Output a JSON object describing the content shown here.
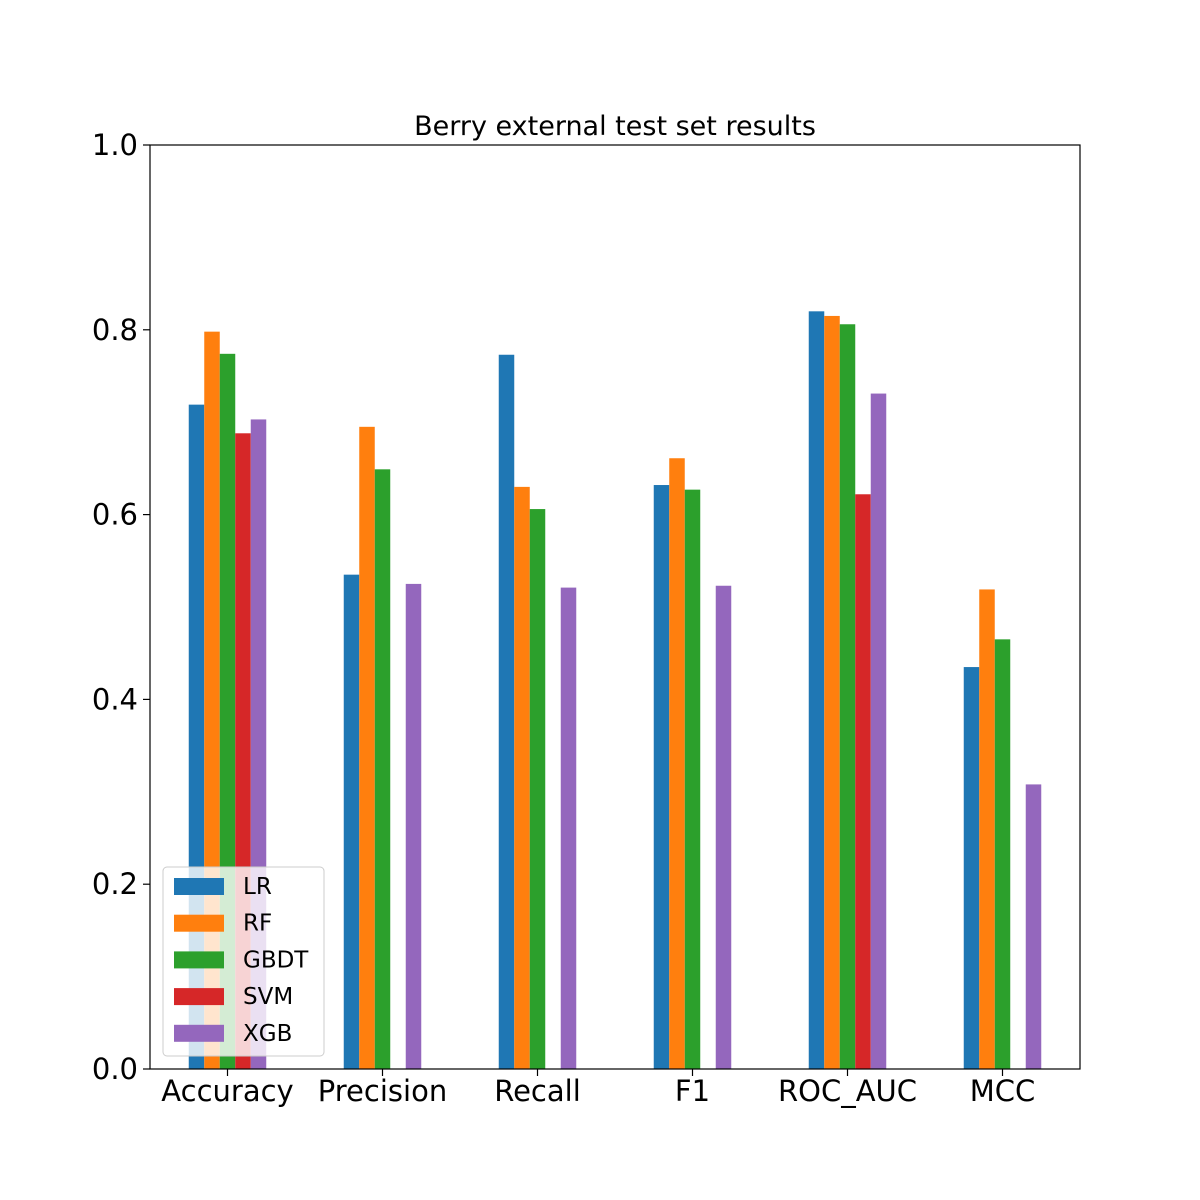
{
  "chart_data": {
    "type": "bar",
    "title": "Berry external test set results",
    "xlabel": "",
    "ylabel": "",
    "categories": [
      "Accuracy",
      "Precision",
      "Recall",
      "F1",
      "ROC_AUC",
      "MCC"
    ],
    "ylim": [
      0,
      1.0
    ],
    "yticks": [
      "0.0",
      "0.2",
      "0.4",
      "0.6",
      "0.8",
      "1.0"
    ],
    "grid": false,
    "legend_position": "lower-left",
    "series": [
      {
        "name": "LR",
        "color": "#1f77b4",
        "values": [
          0.719,
          0.535,
          0.773,
          0.632,
          0.82,
          0.435
        ]
      },
      {
        "name": "RF",
        "color": "#ff7f0e",
        "values": [
          0.798,
          0.695,
          0.63,
          0.661,
          0.815,
          0.519
        ]
      },
      {
        "name": "GBDT",
        "color": "#2ca02c",
        "values": [
          0.774,
          0.649,
          0.606,
          0.627,
          0.806,
          0.465
        ]
      },
      {
        "name": "SVM",
        "color": "#d62728",
        "values": [
          0.688,
          0.0,
          0.0,
          0.0,
          0.622,
          0.0
        ]
      },
      {
        "name": "XGB",
        "color": "#9467bd",
        "values": [
          0.703,
          0.525,
          0.521,
          0.523,
          0.731,
          0.308
        ]
      }
    ]
  }
}
